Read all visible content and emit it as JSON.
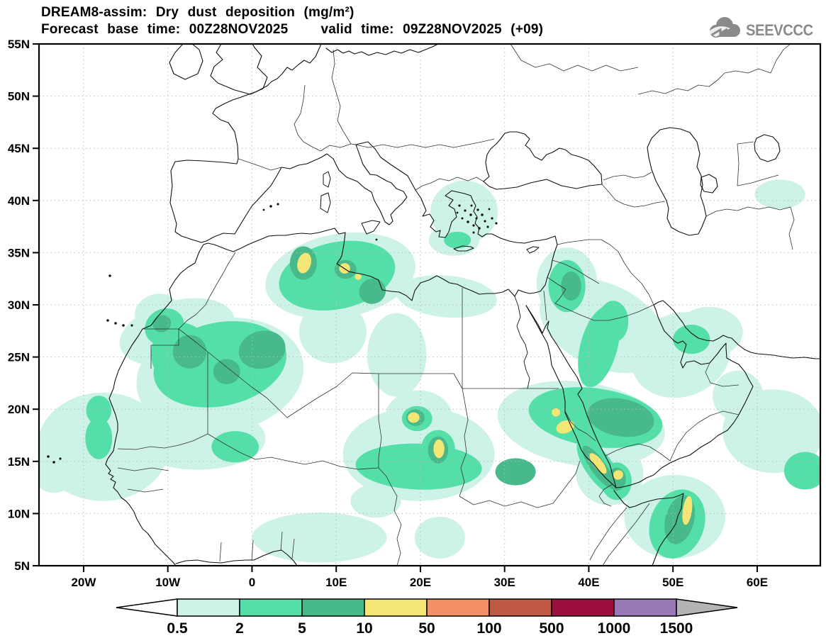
{
  "header": {
    "title_line1": "DREAM8-assim: Dry dust deposition (mg/m²)",
    "forecast_label": "Forecast base time: 00Z28NOV2025",
    "valid_label": "valid time: 09Z28NOV2025 (+09)",
    "logo_text": "SEEVCCC"
  },
  "chart_data": {
    "type": "heatmap",
    "title": "DREAM8-assim: Dry dust deposition (mg/m²)",
    "model": "DREAM8-assim",
    "variable": "Dry dust deposition",
    "units": "mg/m²",
    "forecast_base_time": "00Z28NOV2025",
    "valid_time": "09Z28NOV2025",
    "forecast_hour": "+09",
    "map": {
      "lon_min": -25.3,
      "lon_max": 67.5,
      "lat_min": 5,
      "lat_max": 55,
      "lat_ticks": [
        {
          "deg": 55,
          "label": "55N"
        },
        {
          "deg": 50,
          "label": "50N"
        },
        {
          "deg": 45,
          "label": "45N"
        },
        {
          "deg": 40,
          "label": "40N"
        },
        {
          "deg": 35,
          "label": "35N"
        },
        {
          "deg": 30,
          "label": "30N"
        },
        {
          "deg": 25,
          "label": "25N"
        },
        {
          "deg": 20,
          "label": "20N"
        },
        {
          "deg": 15,
          "label": "15N"
        },
        {
          "deg": 10,
          "label": "10N"
        },
        {
          "deg": 5,
          "label": "5N"
        }
      ],
      "lon_ticks": [
        {
          "deg": -20,
          "label": "20W"
        },
        {
          "deg": -10,
          "label": "10W"
        },
        {
          "deg": 0,
          "label": "0"
        },
        {
          "deg": 10,
          "label": "10E"
        },
        {
          "deg": 20,
          "label": "20E"
        },
        {
          "deg": 30,
          "label": "30E"
        },
        {
          "deg": 40,
          "label": "40E"
        },
        {
          "deg": 50,
          "label": "50E"
        },
        {
          "deg": 60,
          "label": "60E"
        }
      ],
      "graticule_lat_step": 5,
      "graticule_lon_step": 10
    },
    "scale": {
      "levels": [
        "0.5",
        "2",
        "5",
        "10",
        "50",
        "100",
        "500",
        "1000",
        "1500"
      ],
      "colors": [
        "#ffffff",
        "#cdf2e8",
        "#55dfa8",
        "#47b98a",
        "#f4e675",
        "#f49065",
        "#c05a45",
        "#9c0e3c",
        "#9879b5",
        "#b4b4b4"
      ]
    },
    "regions": [
      {
        "l": "0.5",
        "lon": -17.7,
        "lat": 16.4,
        "rx": 7.8,
        "ry": 5.2,
        "rot": 0
      },
      {
        "l": "0.5",
        "lon": -23.5,
        "lat": 14.6,
        "rx": 3.0,
        "ry": 2.6,
        "rot": 0
      },
      {
        "l": "0.5",
        "lon": -8.9,
        "lat": 27.4,
        "rx": 7.0,
        "ry": 3.0,
        "rot": -15
      },
      {
        "l": "0.5",
        "lon": -3.8,
        "lat": 23.2,
        "rx": 10.0,
        "ry": 5.5,
        "rot": -10
      },
      {
        "l": "0.5",
        "lon": -6.4,
        "lat": 17.2,
        "rx": 8.0,
        "ry": 3.0,
        "rot": 0
      },
      {
        "l": "0.5",
        "lon": -11.4,
        "lat": 29.4,
        "rx": 2.6,
        "ry": 1.6,
        "rot": -20
      },
      {
        "l": "0.5",
        "lon": 10.5,
        "lat": 32.8,
        "rx": 9.0,
        "ry": 4.0,
        "rot": -10
      },
      {
        "l": "0.5",
        "lon": 23.1,
        "lat": 30.8,
        "rx": 6.0,
        "ry": 2.0,
        "rot": 5
      },
      {
        "l": "0.5",
        "lon": 9.6,
        "lat": 27.4,
        "rx": 4.0,
        "ry": 3.0,
        "rot": 0
      },
      {
        "l": "0.5",
        "lon": 17.2,
        "lat": 25.2,
        "rx": 3.5,
        "ry": 4.0,
        "rot": 0
      },
      {
        "l": "0.5",
        "lon": 19.8,
        "lat": 15.7,
        "rx": 9.0,
        "ry": 4.5,
        "rot": 0
      },
      {
        "l": "0.5",
        "lon": 19.8,
        "lat": 19.2,
        "rx": 4.0,
        "ry": 2.6,
        "rot": 0
      },
      {
        "l": "0.5",
        "lon": 14.7,
        "lat": 11.2,
        "rx": 3.0,
        "ry": 1.6,
        "rot": 0
      },
      {
        "l": "0.5",
        "lon": 39.1,
        "lat": 18.6,
        "rx": 10.0,
        "ry": 4.0,
        "rot": 8
      },
      {
        "l": "0.5",
        "lon": 42.5,
        "lat": 13.8,
        "rx": 4.0,
        "ry": 3.0,
        "rot": 0
      },
      {
        "l": "0.5",
        "lon": 41.7,
        "lat": 28.0,
        "rx": 8.0,
        "ry": 4.0,
        "rot": 25
      },
      {
        "l": "0.5",
        "lon": 50.9,
        "lat": 25.2,
        "rx": 6.0,
        "ry": 4.0,
        "rot": -20
      },
      {
        "l": "0.5",
        "lon": 54.3,
        "lat": 27.4,
        "rx": 4.0,
        "ry": 2.4,
        "rot": 0
      },
      {
        "l": "0.5",
        "lon": 50.2,
        "lat": 9.7,
        "rx": 6.0,
        "ry": 4.0,
        "rot": 0
      },
      {
        "l": "0.5",
        "lon": 25.2,
        "lat": 38.9,
        "rx": 4.0,
        "ry": 3.0,
        "rot": 0
      },
      {
        "l": "0.5",
        "lon": 24.0,
        "lat": 36.2,
        "rx": 3.0,
        "ry": 1.5,
        "rot": 0
      },
      {
        "l": "0.5",
        "lon": 37.4,
        "lat": 32.1,
        "rx": 3.6,
        "ry": 3.4,
        "rot": 0
      },
      {
        "l": "0.5",
        "lon": 8.0,
        "lat": 7.7,
        "rx": 8.0,
        "ry": 2.4,
        "rot": 0
      },
      {
        "l": "0.5",
        "lon": 22.3,
        "lat": 7.7,
        "rx": 3.0,
        "ry": 2.0,
        "rot": 0
      },
      {
        "l": "0.5",
        "lon": 61.9,
        "lat": 17.9,
        "rx": 6.0,
        "ry": 4.0,
        "rot": 0
      },
      {
        "l": "0.5",
        "lon": 62.7,
        "lat": 40.6,
        "rx": 3.0,
        "ry": 1.4,
        "rot": 0
      },
      {
        "l": "0.5",
        "lon": 57.7,
        "lat": 21.3,
        "rx": 3.0,
        "ry": 2.4,
        "rot": -30
      },
      {
        "l": "2",
        "lon": -3.8,
        "lat": 24.3,
        "rx": 8.0,
        "ry": 4.0,
        "rot": -12
      },
      {
        "l": "2",
        "lon": -8.5,
        "lat": 25.3,
        "rx": 3.5,
        "ry": 3.0,
        "rot": 0
      },
      {
        "l": "2",
        "lon": -10.4,
        "lat": 27.9,
        "rx": 2.4,
        "ry": 1.7,
        "rot": -30
      },
      {
        "l": "2",
        "lon": -18.2,
        "lat": 19.9,
        "rx": 1.5,
        "ry": 1.4,
        "rot": 0
      },
      {
        "l": "2",
        "lon": -18.2,
        "lat": 17.2,
        "rx": 1.6,
        "ry": 2.0,
        "rot": 0
      },
      {
        "l": "2",
        "lon": -2.0,
        "lat": 16.4,
        "rx": 2.8,
        "ry": 1.5,
        "rot": 0
      },
      {
        "l": "2",
        "lon": 10.1,
        "lat": 32.8,
        "rx": 7.0,
        "ry": 3.2,
        "rot": -12
      },
      {
        "l": "2",
        "lon": 19.6,
        "lat": 19.1,
        "rx": 1.8,
        "ry": 1.2,
        "rot": 0
      },
      {
        "l": "2",
        "lon": 22.1,
        "lat": 16.2,
        "rx": 2.0,
        "ry": 1.8,
        "rot": 0
      },
      {
        "l": "2",
        "lon": 19.8,
        "lat": 14.5,
        "rx": 7.5,
        "ry": 2.2,
        "rot": 2
      },
      {
        "l": "2",
        "lon": 40.8,
        "lat": 19.2,
        "rx": 8.0,
        "ry": 2.8,
        "rot": 8
      },
      {
        "l": "2",
        "lon": 41.2,
        "lat": 14.5,
        "rx": 1.6,
        "ry": 3.2,
        "rot": -35
      },
      {
        "l": "2",
        "lon": 41.2,
        "lat": 26.0,
        "rx": 2.2,
        "ry": 4.0,
        "rot": 15
      },
      {
        "l": "2",
        "lon": 42.9,
        "lat": 28.4,
        "rx": 1.8,
        "ry": 2.0,
        "rot": 0
      },
      {
        "l": "2",
        "lon": 52.2,
        "lat": 26.7,
        "rx": 2.2,
        "ry": 1.4,
        "rot": 0
      },
      {
        "l": "2",
        "lon": 37.4,
        "lat": 31.8,
        "rx": 2.2,
        "ry": 2.5,
        "rot": 0
      },
      {
        "l": "2",
        "lon": 50.5,
        "lat": 9.0,
        "rx": 3.2,
        "ry": 3.4,
        "rot": 20
      },
      {
        "l": "2",
        "lon": 24.4,
        "lat": 36.2,
        "rx": 1.6,
        "ry": 0.8,
        "rot": 0
      },
      {
        "l": "2",
        "lon": 43.3,
        "lat": 13.1,
        "rx": 1.8,
        "ry": 1.8,
        "rot": 0
      },
      {
        "l": "2",
        "lon": 65.7,
        "lat": 14.1,
        "rx": 2.5,
        "ry": 1.8,
        "rot": 0
      },
      {
        "l": "5",
        "lon": -7.4,
        "lat": 25.5,
        "rx": 2.0,
        "ry": 1.6,
        "rot": -20
      },
      {
        "l": "5",
        "lon": 1.2,
        "lat": 25.7,
        "rx": 2.8,
        "ry": 1.8,
        "rot": -15
      },
      {
        "l": "5",
        "lon": -3.0,
        "lat": 23.6,
        "rx": 1.6,
        "ry": 1.2,
        "rot": 0
      },
      {
        "l": "5",
        "lon": -10.7,
        "lat": 28.2,
        "rx": 1.1,
        "ry": 0.8,
        "rot": -30
      },
      {
        "l": "5",
        "lon": 6.1,
        "lat": 34.0,
        "rx": 1.6,
        "ry": 1.6,
        "rot": 0
      },
      {
        "l": "5",
        "lon": 11.1,
        "lat": 33.4,
        "rx": 1.3,
        "ry": 0.9,
        "rot": 0
      },
      {
        "l": "5",
        "lon": 14.3,
        "lat": 31.3,
        "rx": 1.6,
        "ry": 1.2,
        "rot": -20
      },
      {
        "l": "5",
        "lon": 19.4,
        "lat": 19.2,
        "rx": 1.1,
        "ry": 0.8,
        "rot": 0
      },
      {
        "l": "5",
        "lon": 22.1,
        "lat": 16.1,
        "rx": 1.2,
        "ry": 1.3,
        "rot": 0
      },
      {
        "l": "5",
        "lon": 43.8,
        "lat": 19.2,
        "rx": 4.0,
        "ry": 1.8,
        "rot": 10
      },
      {
        "l": "5",
        "lon": 31.3,
        "lat": 14.0,
        "rx": 2.4,
        "ry": 1.3,
        "rot": 0
      },
      {
        "l": "5",
        "lon": 41.1,
        "lat": 14.5,
        "rx": 0.9,
        "ry": 2.4,
        "rot": -35
      },
      {
        "l": "5",
        "lon": 43.3,
        "lat": 13.3,
        "rx": 1.1,
        "ry": 1.1,
        "rot": 0
      },
      {
        "l": "5",
        "lon": 50.8,
        "lat": 9.4,
        "rx": 1.7,
        "ry": 2.4,
        "rot": 15
      },
      {
        "l": "5",
        "lon": 37.9,
        "lat": 31.8,
        "rx": 1.2,
        "ry": 1.4,
        "rot": 0
      },
      {
        "l": "10",
        "lon": 6.2,
        "lat": 34.0,
        "rx": 0.8,
        "ry": 1.0,
        "rot": 15
      },
      {
        "l": "10",
        "lon": 11.0,
        "lat": 33.5,
        "rx": 0.65,
        "ry": 0.5,
        "rot": 0
      },
      {
        "l": "10",
        "lon": 12.6,
        "lat": 32.7,
        "rx": 0.4,
        "ry": 0.3,
        "rot": 0
      },
      {
        "l": "10",
        "lon": 19.2,
        "lat": 19.2,
        "rx": 0.7,
        "ry": 0.5,
        "rot": 0
      },
      {
        "l": "10",
        "lon": 22.2,
        "lat": 16.2,
        "rx": 0.65,
        "ry": 0.9,
        "rot": 0
      },
      {
        "l": "10",
        "lon": 36.1,
        "lat": 19.7,
        "rx": 0.5,
        "ry": 0.4,
        "rot": 0
      },
      {
        "l": "10",
        "lon": 37.2,
        "lat": 18.3,
        "rx": 1.1,
        "ry": 0.6,
        "rot": -20
      },
      {
        "l": "10",
        "lon": 41.1,
        "lat": 14.8,
        "rx": 0.55,
        "ry": 1.2,
        "rot": -38
      },
      {
        "l": "10",
        "lon": 43.5,
        "lat": 13.7,
        "rx": 0.6,
        "ry": 0.45,
        "rot": -30
      },
      {
        "l": "10",
        "lon": 51.7,
        "lat": 10.3,
        "rx": 0.55,
        "ry": 1.4,
        "rot": 8
      }
    ]
  }
}
